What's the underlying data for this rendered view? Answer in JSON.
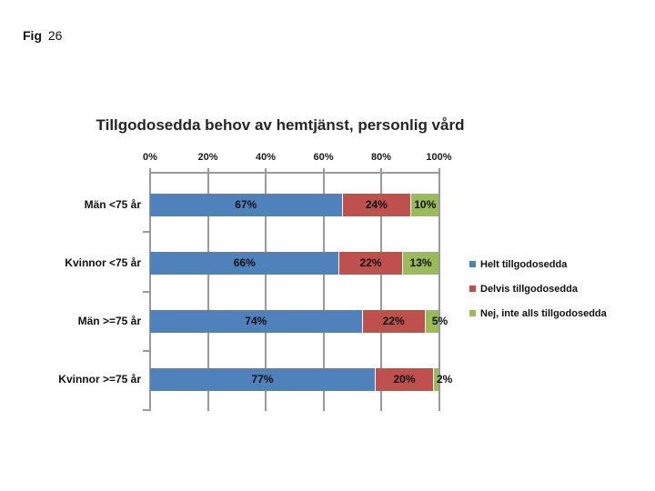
{
  "fig": {
    "prefix": "Fig",
    "number": "26"
  },
  "chart_data": {
    "type": "bar",
    "stacked": true,
    "orientation": "horizontal",
    "title": "Tillgodosedda behov av hemtjänst, personlig vård",
    "categories": [
      "Män <75 år",
      "Kvinnor <75 år",
      "Män >=75 år",
      "Kvinnor >=75 år"
    ],
    "series": [
      {
        "name": "Helt tillgodosedda",
        "color": "#4F81BD",
        "values": [
          67,
          66,
          74,
          77
        ]
      },
      {
        "name": "Delvis tillgodosedda",
        "color": "#C0504D",
        "values": [
          24,
          22,
          22,
          20
        ]
      },
      {
        "name": "Nej, inte alls tillgodosedda",
        "color": "#9BBB59",
        "values": [
          10,
          13,
          5,
          2
        ]
      }
    ],
    "value_suffix": "%",
    "x_axis": {
      "tick_labels": [
        "0%",
        "20%",
        "40%",
        "60%",
        "80%",
        "100%"
      ],
      "min": 0,
      "max": 100,
      "position": "top"
    },
    "grid": true,
    "legend_position": "right",
    "colors": {
      "gridline": "#9a9a9a",
      "label_text": "#111111"
    }
  }
}
